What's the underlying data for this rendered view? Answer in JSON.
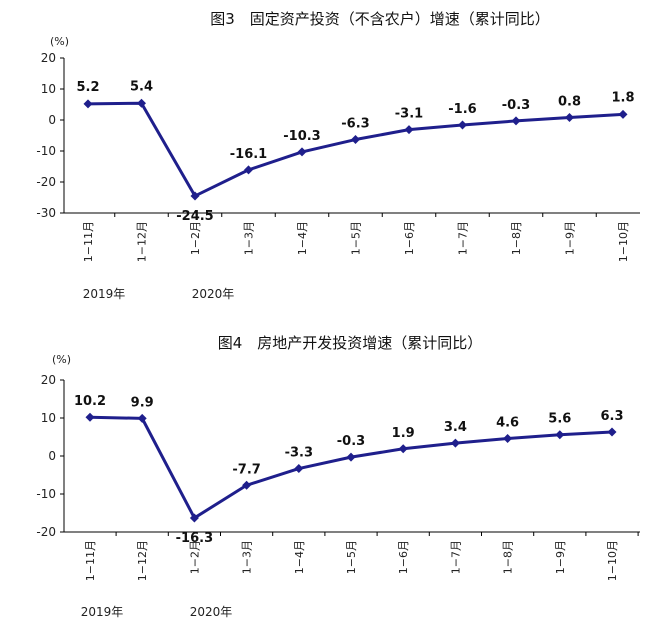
{
  "chart_data": [
    {
      "type": "line",
      "title": "图3　固定资产投资（不含农户）增速（累计同比）",
      "unit": "(%)",
      "categories": [
        "1−11月",
        "1−12月",
        "1−2月",
        "1−3月",
        "1−4月",
        "1−5月",
        "1−6月",
        "1−7月",
        "1−8月",
        "1−9月",
        "1−10月"
      ],
      "year_labels": [
        "2019年",
        "2020年"
      ],
      "values": [
        5.2,
        5.4,
        -24.5,
        -16.1,
        -10.3,
        -6.3,
        -3.1,
        -1.6,
        -0.3,
        0.8,
        1.8
      ],
      "data_labels": [
        "5.2",
        "5.4",
        "-24.5",
        "-16.1",
        "-10.3",
        "-6.3",
        "-3.1",
        "-1.6",
        "-0.3",
        "0.8",
        "1.8"
      ],
      "ylim": [
        -30,
        20
      ],
      "yticks": [
        "20",
        "10",
        "0",
        "-10",
        "-20",
        "-30"
      ],
      "grid": false,
      "color": "#1f1f8c"
    },
    {
      "type": "line",
      "title": "图4　房地产开发投资增速（累计同比）",
      "unit": "(%)",
      "categories": [
        "1−11月",
        "1−12月",
        "1−2月",
        "1−3月",
        "1−4月",
        "1−5月",
        "1−6月",
        "1−7月",
        "1−8月",
        "1−9月",
        "1−10月"
      ],
      "year_labels": [
        "2019年",
        "2020年"
      ],
      "values": [
        10.2,
        9.9,
        -16.3,
        -7.7,
        -3.3,
        -0.3,
        1.9,
        3.4,
        4.6,
        5.6,
        6.3
      ],
      "data_labels": [
        "10.2",
        "9.9",
        "-16.3",
        "-7.7",
        "-3.3",
        "-0.3",
        "1.9",
        "3.4",
        "4.6",
        "5.6",
        "6.3"
      ],
      "ylim": [
        -20,
        20
      ],
      "yticks": [
        "20",
        "10",
        "0",
        "-10",
        "-20"
      ],
      "grid": false,
      "color": "#1f1f8c"
    }
  ]
}
